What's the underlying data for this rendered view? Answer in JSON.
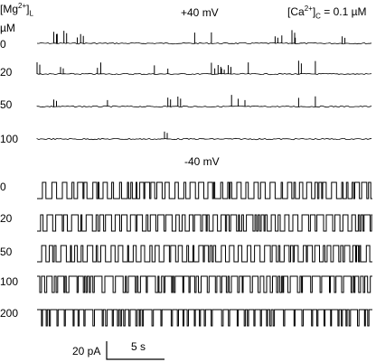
{
  "header": {
    "mg_label": "[Mg",
    "mg_sup": "2+",
    "mg_close": "]",
    "mg_sub": "L",
    "unit": "µM",
    "ca_label": "[Ca",
    "ca_sup": "2+",
    "ca_close": "]",
    "ca_sub": "C",
    "ca_value": " = 0.1 µM"
  },
  "chart_data": {
    "type": "line",
    "title": "",
    "panels": [
      {
        "voltage_label": "+40 mV",
        "traces": [
          {
            "mg": "0",
            "event_times": [
              0.05,
              0.06,
              0.08,
              0.12,
              0.13,
              0.47,
              0.52,
              0.71,
              0.73,
              0.76,
              0.77,
              0.91
            ]
          },
          {
            "mg": "20",
            "event_times": [
              0.0,
              0.07,
              0.18,
              0.19,
              0.35,
              0.39,
              0.52,
              0.53,
              0.54,
              0.55,
              0.57,
              0.63,
              0.78,
              0.83
            ]
          },
          {
            "mg": "50",
            "event_times": [
              0.05,
              0.21,
              0.39,
              0.42,
              0.58,
              0.6,
              0.62,
              0.78,
              0.83
            ]
          },
          {
            "mg": "100",
            "event_times": [
              0.38
            ]
          }
        ]
      },
      {
        "voltage_label": "-40 mV",
        "traces": [
          {
            "mg": "0",
            "open_fraction": 0.5
          },
          {
            "mg": "20",
            "open_fraction": 0.35
          },
          {
            "mg": "50",
            "open_fraction": 0.45
          },
          {
            "mg": "100",
            "open_fraction": 0.18
          },
          {
            "mg": "200",
            "open_fraction": 0.06
          }
        ]
      }
    ]
  },
  "scale_bar": {
    "current_label": "20 pA",
    "time_label": "5 s"
  }
}
